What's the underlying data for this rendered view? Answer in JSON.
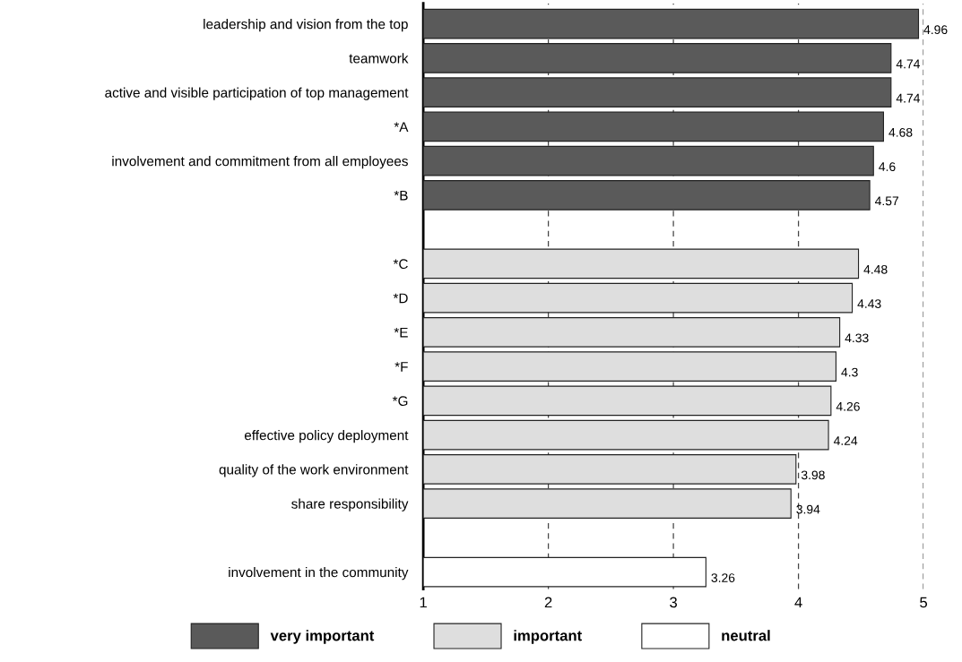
{
  "chart_data": {
    "type": "bar",
    "orientation": "horizontal",
    "categories": [
      "leadership and vision from the top",
      "teamwork",
      "active and visible participation of top management",
      "*A",
      "involvement and commitment from all employees",
      "*B",
      null,
      "*C",
      "*D",
      "*E",
      "*F",
      "*G",
      "effective policy deployment",
      "quality of the work environment",
      "share responsibility",
      null,
      "involvement in the community"
    ],
    "series": [
      {
        "name": "very important",
        "color": "#5a5a5a",
        "values": [
          4.96,
          4.74,
          4.74,
          4.68,
          4.6,
          4.57,
          null,
          null,
          null,
          null,
          null,
          null,
          null,
          null,
          null,
          null,
          null
        ]
      },
      {
        "name": "important",
        "color": "#dedede",
        "values": [
          null,
          null,
          null,
          null,
          null,
          null,
          null,
          4.48,
          4.43,
          4.33,
          4.3,
          4.26,
          4.24,
          3.98,
          3.94,
          null,
          null
        ]
      },
      {
        "name": "neutral",
        "color": "#ffffff",
        "values": [
          null,
          null,
          null,
          null,
          null,
          null,
          null,
          null,
          null,
          null,
          null,
          null,
          null,
          null,
          null,
          null,
          3.26
        ]
      }
    ],
    "xlim": [
      1,
      5
    ],
    "xticks": [
      1,
      2,
      3,
      4,
      5
    ],
    "grid": "x",
    "legend": "bottom",
    "data_labels": true
  }
}
